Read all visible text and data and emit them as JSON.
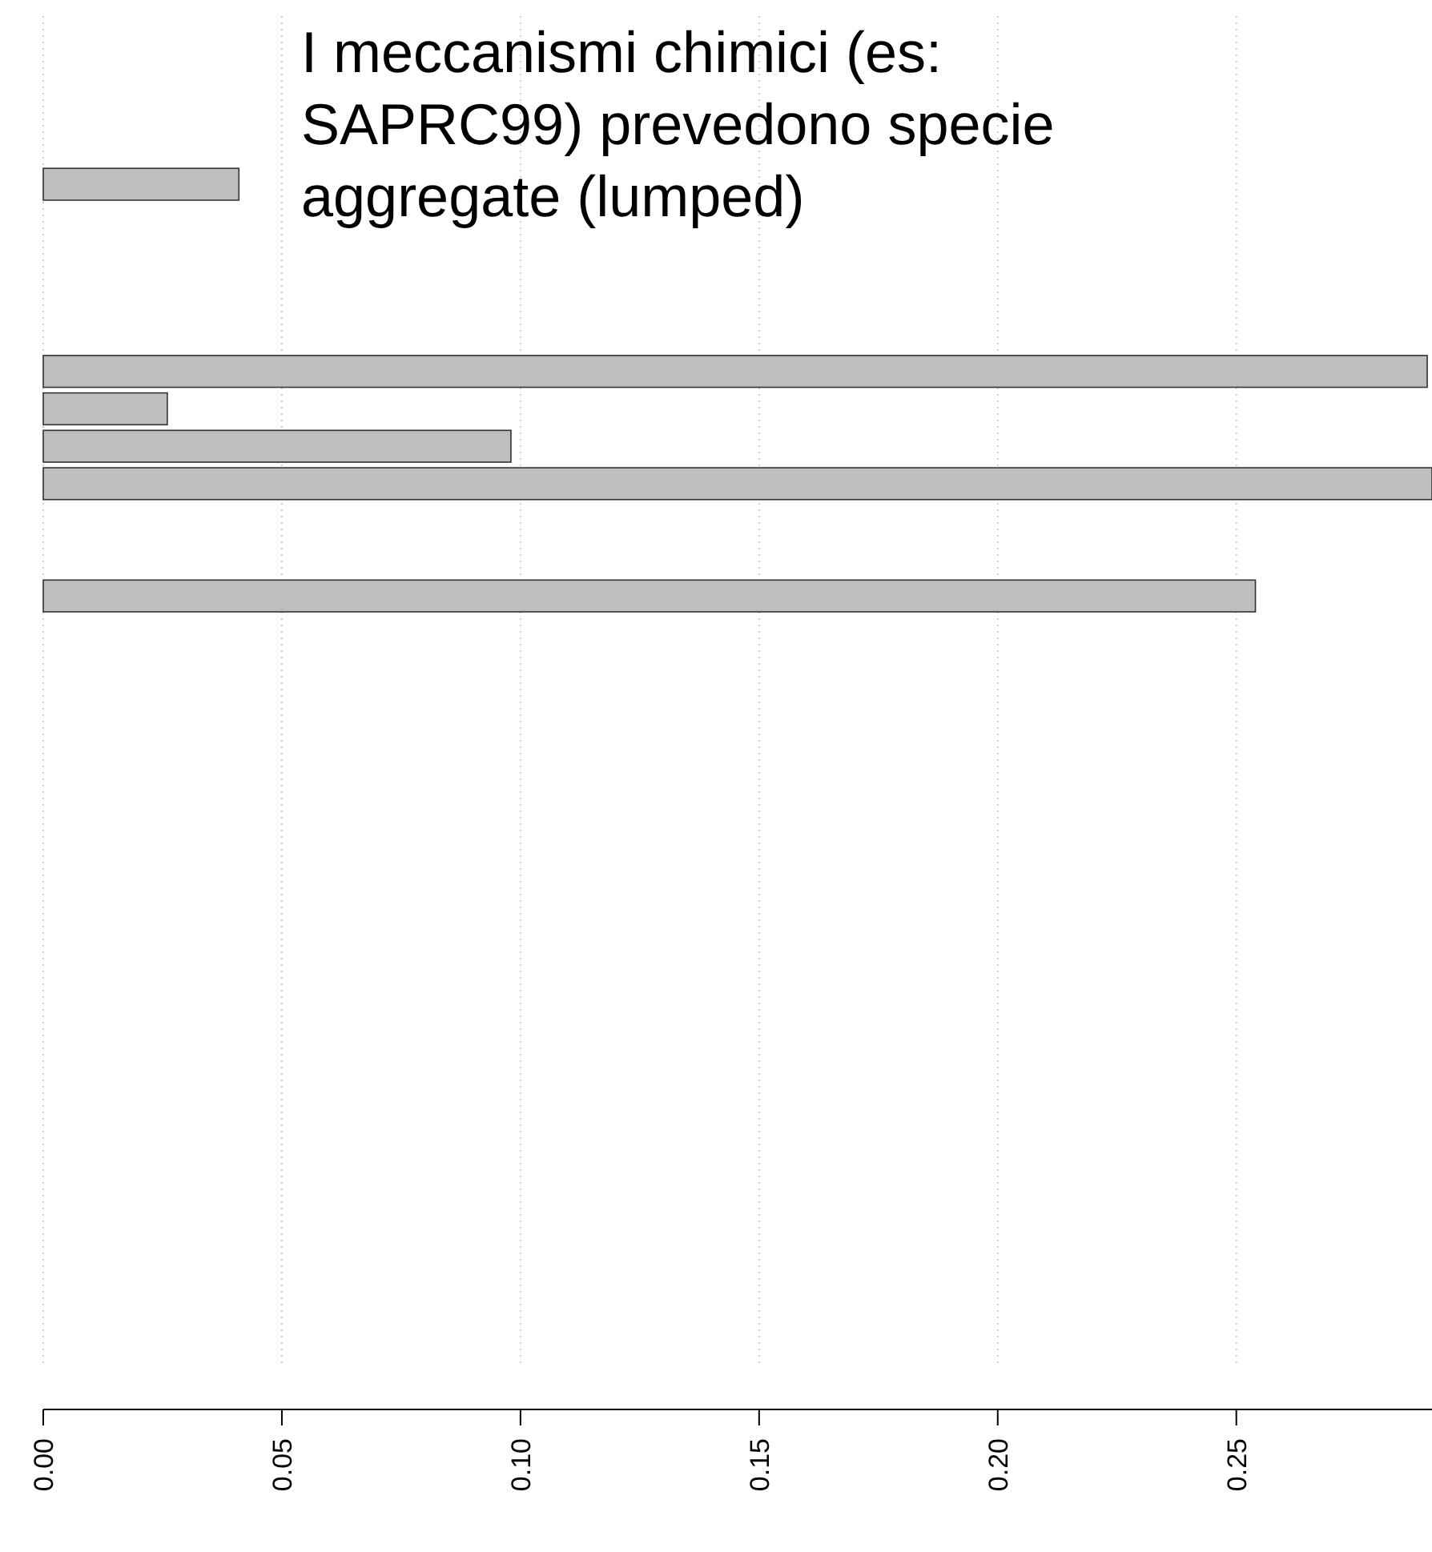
{
  "chart_data": {
    "type": "bar",
    "orientation": "horizontal",
    "categories": [
      null,
      null,
      null,
      null,
      null,
      null,
      null,
      null,
      null,
      null,
      null,
      null,
      null,
      null,
      null,
      null,
      null,
      null,
      null,
      null,
      null,
      null,
      null,
      null,
      null,
      null,
      null,
      null,
      null,
      null,
      null,
      null,
      null,
      null,
      null,
      null
    ],
    "values": [
      0,
      0,
      0,
      0,
      0.041,
      0,
      0,
      0,
      0,
      0.29,
      0.026,
      0.098,
      0.291,
      0,
      0,
      0.254,
      0,
      0,
      0,
      0,
      0,
      0,
      0,
      0,
      0,
      0,
      0,
      0,
      0,
      0,
      0,
      0,
      0,
      0,
      0,
      0
    ],
    "color": "#bebebe",
    "xlim": [
      0,
      0.291
    ],
    "xticks": [
      {
        "value": 0,
        "label": "0.00"
      },
      {
        "value": 0.05,
        "label": "0.05"
      },
      {
        "value": 0.1,
        "label": "0.10"
      },
      {
        "value": 0.15,
        "label": "0.15"
      },
      {
        "value": 0.2,
        "label": "0.20"
      },
      {
        "value": 0.25,
        "label": "0.25"
      }
    ],
    "grid": "x",
    "annotations": [
      "I meccanismi chimici (es: SAPRC99) prevedono specie aggregate (lumped)"
    ]
  }
}
